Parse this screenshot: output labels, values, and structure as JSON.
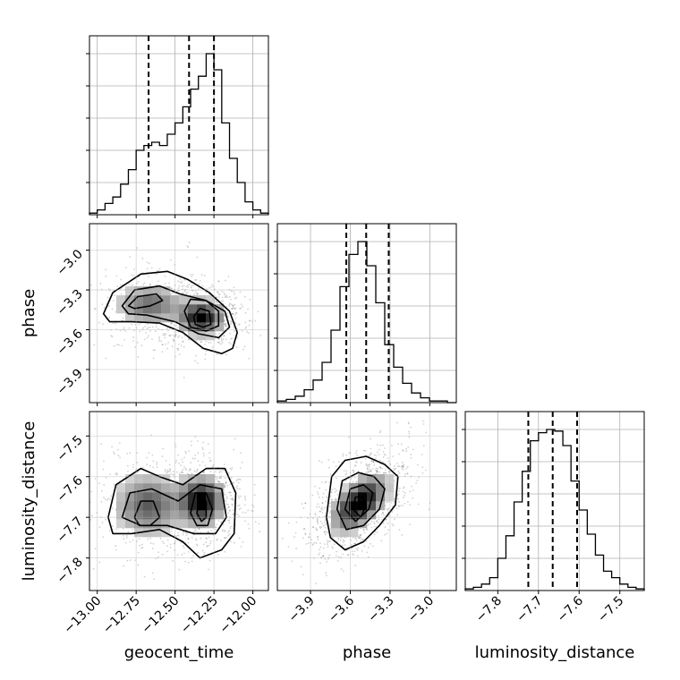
{
  "chart_data": {
    "type": "corner",
    "parameters": [
      {
        "key": "geocent_time",
        "label": "geocent_time",
        "range": [
          -13.05,
          -11.9
        ],
        "ticks": [
          -13.0,
          -12.75,
          -12.5,
          -12.25,
          -12.0
        ],
        "tick_labels": [
          "−13.00",
          "−12.75",
          "−12.50",
          "−12.25",
          "−12.00"
        ],
        "quantile_lines": [
          -12.67,
          -12.41,
          -12.25
        ],
        "hist_counts": [
          1,
          3,
          7,
          11,
          19,
          28,
          40,
          43,
          45,
          43,
          50,
          57,
          67,
          78,
          86,
          100,
          90,
          57,
          35,
          20,
          8,
          3,
          1
        ]
      },
      {
        "key": "phase",
        "label": "phase",
        "range": [
          -4.15,
          -2.8
        ],
        "ticks": [
          -3.9,
          -3.6,
          -3.3,
          -3.0
        ],
        "tick_labels": [
          "−3.9",
          "−3.6",
          "−3.3",
          "−3.0"
        ],
        "quantile_lines": [
          -3.63,
          -3.48,
          -3.31
        ],
        "hist_counts": [
          1,
          2,
          4,
          8,
          14,
          25,
          45,
          72,
          92,
          100,
          85,
          62,
          36,
          22,
          12,
          6,
          3,
          1,
          1,
          0
        ]
      },
      {
        "key": "luminosity_distance",
        "label": "luminosity_distance",
        "range": [
          -7.88,
          -7.44
        ],
        "ticks": [
          -7.8,
          -7.7,
          -7.6,
          -7.5
        ],
        "tick_labels": [
          "−7.8",
          "−7.7",
          "−7.6",
          "−7.5"
        ],
        "quantile_lines": [
          -7.725,
          -7.665,
          -7.605
        ],
        "hist_counts": [
          1,
          2,
          4,
          8,
          20,
          34,
          55,
          74,
          93,
          98,
          100,
          99,
          90,
          68,
          50,
          35,
          22,
          12,
          8,
          4,
          2,
          1
        ]
      }
    ],
    "pairs": [
      {
        "x": "geocent_time",
        "y": "phase",
        "modes": [
          {
            "cx": -12.33,
            "cy": -3.51,
            "sx": 0.085,
            "sy": 0.075,
            "w": 1.0
          },
          {
            "cx": -12.66,
            "cy": -3.41,
            "sx": 0.13,
            "sy": 0.09,
            "w": 0.55
          }
        ],
        "contours": [
          [
            [
              -12.96,
              -3.48
            ],
            [
              -12.9,
              -3.32
            ],
            [
              -12.72,
              -3.18
            ],
            [
              -12.55,
              -3.16
            ],
            [
              -12.42,
              -3.22
            ],
            [
              -12.28,
              -3.32
            ],
            [
              -12.15,
              -3.46
            ],
            [
              -12.1,
              -3.62
            ],
            [
              -12.13,
              -3.74
            ],
            [
              -12.2,
              -3.78
            ],
            [
              -12.32,
              -3.74
            ],
            [
              -12.45,
              -3.62
            ],
            [
              -12.6,
              -3.55
            ],
            [
              -12.78,
              -3.54
            ],
            [
              -12.92,
              -3.54
            ]
          ],
          [
            [
              -12.84,
              -3.42
            ],
            [
              -12.76,
              -3.3
            ],
            [
              -12.6,
              -3.27
            ],
            [
              -12.47,
              -3.33
            ],
            [
              -12.3,
              -3.38
            ],
            [
              -12.18,
              -3.46
            ],
            [
              -12.15,
              -3.58
            ],
            [
              -12.22,
              -3.66
            ],
            [
              -12.35,
              -3.63
            ],
            [
              -12.5,
              -3.54
            ],
            [
              -12.68,
              -3.49
            ],
            [
              -12.8,
              -3.48
            ]
          ],
          [
            [
              -12.8,
              -3.42
            ],
            [
              -12.74,
              -3.35
            ],
            [
              -12.62,
              -3.33
            ],
            [
              -12.58,
              -3.38
            ],
            [
              -12.66,
              -3.42
            ],
            [
              -12.76,
              -3.44
            ]
          ],
          [
            [
              -12.44,
              -3.46
            ],
            [
              -12.4,
              -3.37
            ],
            [
              -12.3,
              -3.38
            ],
            [
              -12.22,
              -3.46
            ],
            [
              -12.22,
              -3.57
            ],
            [
              -12.3,
              -3.61
            ],
            [
              -12.4,
              -3.58
            ]
          ],
          [
            [
              -12.38,
              -3.5
            ],
            [
              -12.34,
              -3.44
            ],
            [
              -12.28,
              -3.46
            ],
            [
              -12.27,
              -3.56
            ],
            [
              -12.32,
              -3.58
            ],
            [
              -12.37,
              -3.56
            ]
          ]
        ]
      },
      {
        "x": "geocent_time",
        "y": "luminosity_distance",
        "modes": [
          {
            "cx": -12.33,
            "cy": -7.66,
            "sx": 0.085,
            "sy": 0.035,
            "w": 1.0
          },
          {
            "cx": -12.67,
            "cy": -7.67,
            "sx": 0.13,
            "sy": 0.045,
            "w": 0.6
          }
        ],
        "contours": [
          [
            [
              -12.93,
              -7.7
            ],
            [
              -12.88,
              -7.62
            ],
            [
              -12.72,
              -7.58
            ],
            [
              -12.6,
              -7.6
            ],
            [
              -12.45,
              -7.62
            ],
            [
              -12.3,
              -7.58
            ],
            [
              -12.18,
              -7.58
            ],
            [
              -12.11,
              -7.64
            ],
            [
              -12.12,
              -7.74
            ],
            [
              -12.2,
              -7.78
            ],
            [
              -12.34,
              -7.8
            ],
            [
              -12.45,
              -7.76
            ],
            [
              -12.6,
              -7.73
            ],
            [
              -12.78,
              -7.74
            ],
            [
              -12.9,
              -7.74
            ]
          ],
          [
            [
              -12.84,
              -7.7
            ],
            [
              -12.79,
              -7.64
            ],
            [
              -12.65,
              -7.63
            ],
            [
              -12.48,
              -7.66
            ],
            [
              -12.34,
              -7.62
            ],
            [
              -12.2,
              -7.63
            ],
            [
              -12.17,
              -7.7
            ],
            [
              -12.24,
              -7.74
            ],
            [
              -12.38,
              -7.74
            ],
            [
              -12.55,
              -7.72
            ],
            [
              -12.72,
              -7.72
            ]
          ],
          [
            [
              -12.76,
              -7.7
            ],
            [
              -12.72,
              -7.66
            ],
            [
              -12.64,
              -7.66
            ],
            [
              -12.6,
              -7.7
            ],
            [
              -12.66,
              -7.72
            ],
            [
              -12.73,
              -7.72
            ]
          ],
          [
            [
              -12.4,
              -7.69
            ],
            [
              -12.37,
              -7.64
            ],
            [
              -12.3,
              -7.64
            ],
            [
              -12.26,
              -7.68
            ],
            [
              -12.29,
              -7.72
            ],
            [
              -12.36,
              -7.72
            ]
          ],
          [
            [
              -12.36,
              -7.69
            ],
            [
              -12.34,
              -7.65
            ],
            [
              -12.3,
              -7.66
            ],
            [
              -12.3,
              -7.7
            ],
            [
              -12.33,
              -7.71
            ]
          ]
        ]
      },
      {
        "x": "phase",
        "y": "luminosity_distance",
        "modes": [
          {
            "cx": -3.53,
            "cy": -7.665,
            "sx": 0.12,
            "sy": 0.04,
            "rho": 0.55,
            "w": 1.0
          }
        ],
        "contours": [
          [
            [
              -3.78,
              -7.7
            ],
            [
              -3.74,
              -7.6
            ],
            [
              -3.64,
              -7.56
            ],
            [
              -3.48,
              -7.55
            ],
            [
              -3.34,
              -7.57
            ],
            [
              -3.24,
              -7.6
            ],
            [
              -3.26,
              -7.67
            ],
            [
              -3.38,
              -7.72
            ],
            [
              -3.5,
              -7.76
            ],
            [
              -3.64,
              -7.78
            ],
            [
              -3.75,
              -7.75
            ]
          ],
          [
            [
              -3.7,
              -7.68
            ],
            [
              -3.66,
              -7.61
            ],
            [
              -3.54,
              -7.59
            ],
            [
              -3.42,
              -7.6
            ],
            [
              -3.34,
              -7.63
            ],
            [
              -3.38,
              -7.68
            ],
            [
              -3.5,
              -7.72
            ],
            [
              -3.63,
              -7.73
            ]
          ],
          [
            [
              -3.64,
              -7.68
            ],
            [
              -3.6,
              -7.63
            ],
            [
              -3.5,
              -7.62
            ],
            [
              -3.43,
              -7.64
            ],
            [
              -3.46,
              -7.68
            ],
            [
              -3.56,
              -7.71
            ]
          ],
          [
            [
              -3.58,
              -7.68
            ],
            [
              -3.56,
              -7.65
            ],
            [
              -3.5,
              -7.65
            ],
            [
              -3.48,
              -7.67
            ],
            [
              -3.52,
              -7.7
            ]
          ]
        ]
      }
    ]
  }
}
